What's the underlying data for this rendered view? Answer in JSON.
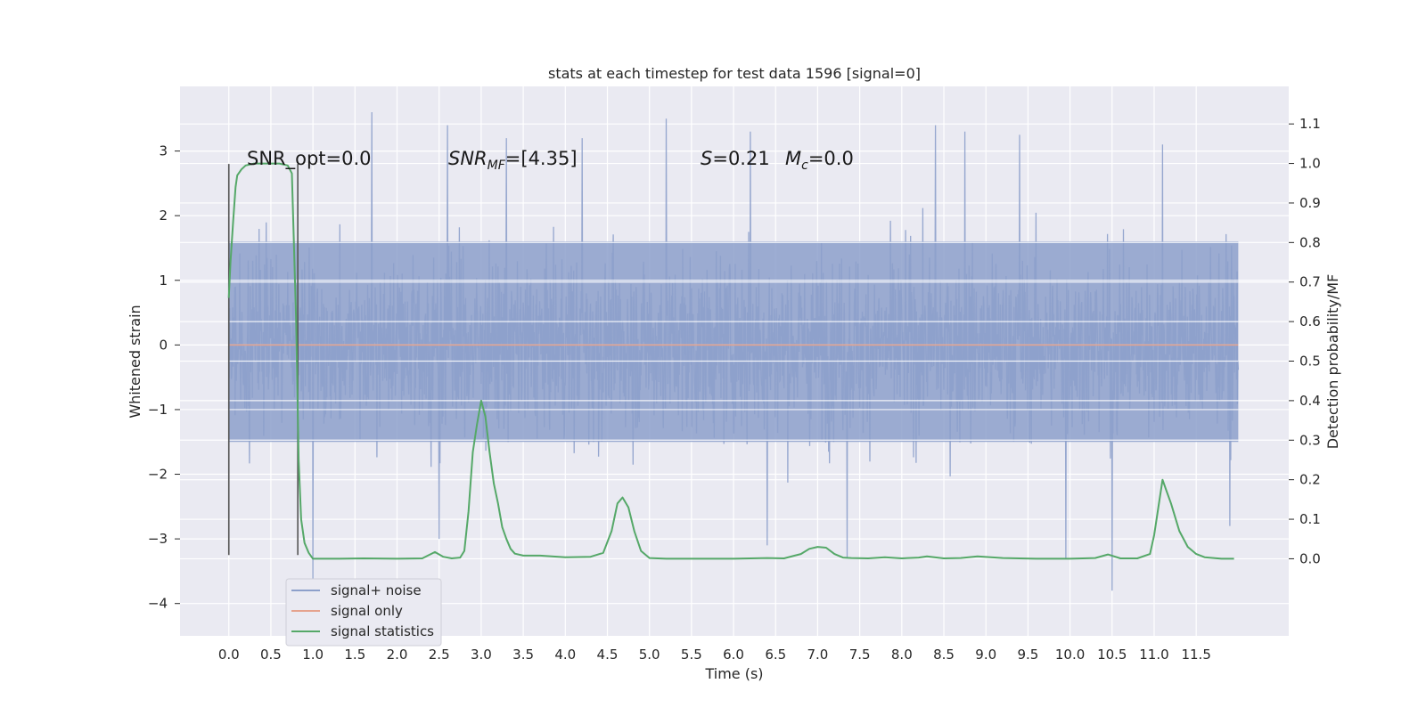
{
  "chart_data": {
    "type": "line",
    "title": "stats at each timestep for test data 1596 [signal=0]",
    "xlabel": "Time (s)",
    "ylabel_left": "Whitened strain",
    "ylabel_right": "Detection probability/MF",
    "xlim": [
      -0.58,
      12.6
    ],
    "ylim_left": [
      -4.5,
      4.0
    ],
    "ylim_right": [
      -0.195,
      1.195
    ],
    "x_ticks": [
      "0.0",
      "0.5",
      "1.0",
      "1.5",
      "2.0",
      "2.5",
      "3.0",
      "3.5",
      "4.0",
      "4.5",
      "5.0",
      "5.5",
      "6.0",
      "6.5",
      "7.0",
      "7.5",
      "8.0",
      "8.5",
      "9.0",
      "9.5",
      "10.0",
      "10.5",
      "11.0",
      "11.5"
    ],
    "y_left_ticks": [
      "3",
      "2",
      "1",
      "0",
      "−1",
      "−2",
      "−3",
      "−4"
    ],
    "y_right_ticks": [
      "1.1",
      "1.0",
      "0.9",
      "0.8",
      "0.7",
      "0.6",
      "0.5",
      "0.4",
      "0.3",
      "0.2",
      "0.1",
      "0.0"
    ],
    "grid": true,
    "legend_position": "lower-left",
    "annotations": {
      "snr_opt": "SNR_opt=0.0",
      "snr_mf_base": "SNR",
      "snr_mf_sub": "MF",
      "snr_mf_value": "=[4.35]",
      "s_symbol": "S",
      "s_value": "=0.21",
      "mc_base": "M",
      "mc_sub": "c",
      "mc_value": "=0.0"
    },
    "markers": {
      "vertical_lines_x": [
        0.0,
        0.82
      ]
    },
    "series": [
      {
        "name": "signal+ noise",
        "color": "#8da0cb",
        "axis": "left",
        "description_values": {
          "time_range": [
            0.0,
            12.0
          ],
          "typical_band": [
            -1.5,
            1.6
          ],
          "extremes": [
            -3.8,
            3.6
          ]
        },
        "peaks": [
          [
            1.7,
            3.6
          ],
          [
            2.6,
            3.4
          ],
          [
            3.3,
            3.2
          ],
          [
            4.2,
            3.2
          ],
          [
            5.2,
            3.5
          ],
          [
            6.2,
            3.3
          ],
          [
            8.4,
            3.4
          ],
          [
            8.75,
            3.3
          ],
          [
            9.4,
            3.25
          ],
          [
            11.1,
            3.1
          ],
          [
            1.0,
            -3.7
          ],
          [
            7.35,
            -3.3
          ],
          [
            9.95,
            -3.3
          ],
          [
            10.5,
            -3.8
          ],
          [
            2.5,
            -3.0
          ],
          [
            6.4,
            -3.1
          ],
          [
            11.9,
            -2.8
          ]
        ]
      },
      {
        "name": "signal only",
        "color": "#e5a38e",
        "axis": "left",
        "x": [
          0.0,
          12.0
        ],
        "y": [
          0.0,
          0.0
        ]
      },
      {
        "name": "signal statistics",
        "color": "#55a868",
        "axis": "right",
        "x": [
          0.0,
          0.02,
          0.05,
          0.08,
          0.1,
          0.15,
          0.2,
          0.3,
          0.4,
          0.5,
          0.6,
          0.7,
          0.75,
          0.8,
          0.83,
          0.86,
          0.9,
          0.95,
          1.0,
          1.1,
          1.3,
          1.6,
          2.0,
          2.3,
          2.45,
          2.55,
          2.65,
          2.75,
          2.8,
          2.85,
          2.9,
          2.95,
          3.0,
          3.05,
          3.1,
          3.15,
          3.2,
          3.25,
          3.3,
          3.35,
          3.4,
          3.5,
          3.7,
          4.0,
          4.3,
          4.45,
          4.55,
          4.62,
          4.68,
          4.75,
          4.82,
          4.9,
          5.0,
          5.2,
          6.0,
          6.4,
          6.6,
          6.8,
          6.9,
          7.0,
          7.1,
          7.2,
          7.3,
          7.4,
          7.6,
          7.8,
          8.0,
          8.2,
          8.3,
          8.5,
          8.7,
          8.9,
          9.2,
          9.6,
          10.0,
          10.3,
          10.45,
          10.6,
          10.8,
          10.95,
          11.0,
          11.05,
          11.1,
          11.15,
          11.2,
          11.3,
          11.4,
          11.5,
          11.6,
          11.8,
          11.95
        ],
        "y": [
          0.66,
          0.75,
          0.85,
          0.94,
          0.97,
          0.985,
          0.995,
          1.0,
          1.0,
          1.0,
          1.0,
          0.995,
          0.975,
          0.6,
          0.25,
          0.1,
          0.04,
          0.015,
          0.0,
          0.0,
          0.0,
          0.001,
          0.0,
          0.001,
          0.017,
          0.005,
          0.001,
          0.003,
          0.02,
          0.12,
          0.27,
          0.34,
          0.4,
          0.36,
          0.27,
          0.19,
          0.14,
          0.08,
          0.05,
          0.025,
          0.013,
          0.008,
          0.008,
          0.004,
          0.005,
          0.015,
          0.07,
          0.14,
          0.155,
          0.13,
          0.07,
          0.02,
          0.002,
          0.0,
          0.0,
          0.002,
          0.001,
          0.012,
          0.025,
          0.03,
          0.028,
          0.012,
          0.003,
          0.002,
          0.001,
          0.004,
          0.001,
          0.003,
          0.006,
          0.001,
          0.002,
          0.006,
          0.002,
          0.0,
          0.0,
          0.002,
          0.011,
          0.001,
          0.001,
          0.012,
          0.06,
          0.13,
          0.2,
          0.17,
          0.14,
          0.07,
          0.03,
          0.012,
          0.004,
          0.0,
          0.0
        ]
      }
    ]
  }
}
